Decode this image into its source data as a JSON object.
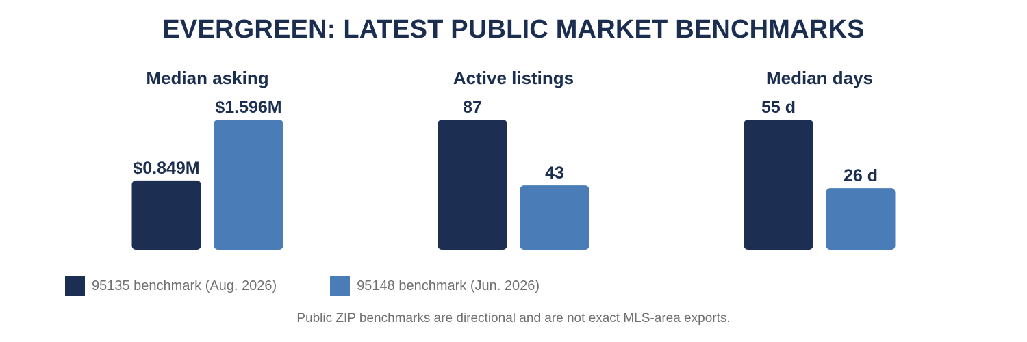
{
  "title": "EVERGREEN: LATEST PUBLIC MARKET BENCHMARKS",
  "colors": {
    "series_a": "#1c2f52",
    "series_b": "#4a7db8",
    "text": "#1b2e50",
    "muted": "#707070"
  },
  "legend": [
    {
      "label": "95135 benchmark (Aug. 2026)"
    },
    {
      "label": "95148 benchmark (Jun. 2026)"
    }
  ],
  "footnote": "Public ZIP benchmarks are directional and are not exact MLS-area exports.",
  "chart_data": [
    {
      "type": "bar",
      "title": "Median asking",
      "series": [
        {
          "name": "95135 benchmark (Aug. 2026)",
          "value": 0.849,
          "label": "$0.849M"
        },
        {
          "name": "95148 benchmark (Jun. 2026)",
          "value": 1.596,
          "label": "$1.596M"
        }
      ],
      "ylim": [
        0,
        1.596
      ]
    },
    {
      "type": "bar",
      "title": "Active listings",
      "series": [
        {
          "name": "95135 benchmark (Aug. 2026)",
          "value": 87,
          "label": "87"
        },
        {
          "name": "95148 benchmark (Jun. 2026)",
          "value": 43,
          "label": "43"
        }
      ],
      "ylim": [
        0,
        87
      ]
    },
    {
      "type": "bar",
      "title": "Median days",
      "series": [
        {
          "name": "95135 benchmark (Aug. 2026)",
          "value": 55,
          "label": "55 d"
        },
        {
          "name": "95148 benchmark (Jun. 2026)",
          "value": 26,
          "label": "26 d"
        }
      ],
      "ylim": [
        0,
        55
      ]
    }
  ]
}
